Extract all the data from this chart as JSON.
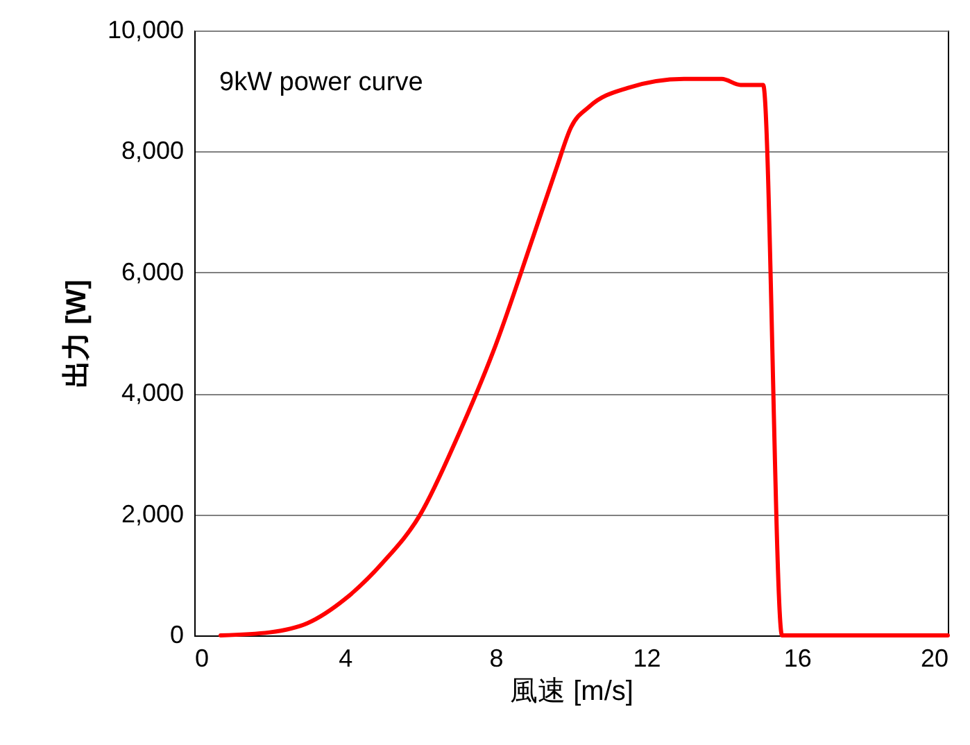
{
  "chart_data": {
    "type": "line",
    "xlabel": "風速 [m/s]",
    "ylabel": "出力 [W]",
    "annotations": [
      "9kW power curve"
    ],
    "x": [
      0.7,
      2,
      3,
      4,
      5,
      6,
      7,
      8,
      9,
      9.6,
      10,
      10.5,
      11.5,
      13,
      14,
      14.5,
      15.1,
      15.6,
      20
    ],
    "series": [
      {
        "color": "#ff0000",
        "values": [
          0,
          50,
          200,
          600,
          1200,
          2000,
          3300,
          4800,
          6600,
          7700,
          8400,
          8750,
          9050,
          9200,
          9200,
          9100,
          9100,
          0,
          0
        ]
      }
    ],
    "xlim": [
      0,
      20
    ],
    "xticks": [
      0,
      4,
      8,
      12,
      16,
      20
    ],
    "ylim": [
      0,
      10000
    ],
    "yticks": [
      0,
      {
        "value": 2000,
        "label": "2,000"
      },
      {
        "value": 4000,
        "label": "4,000"
      },
      {
        "value": 6000,
        "label": "6,000"
      },
      {
        "value": 8000,
        "label": "8,000"
      },
      {
        "value": 10000,
        "label": "10,000"
      }
    ],
    "grid": "y",
    "marker": "none",
    "line_style": "solid"
  }
}
